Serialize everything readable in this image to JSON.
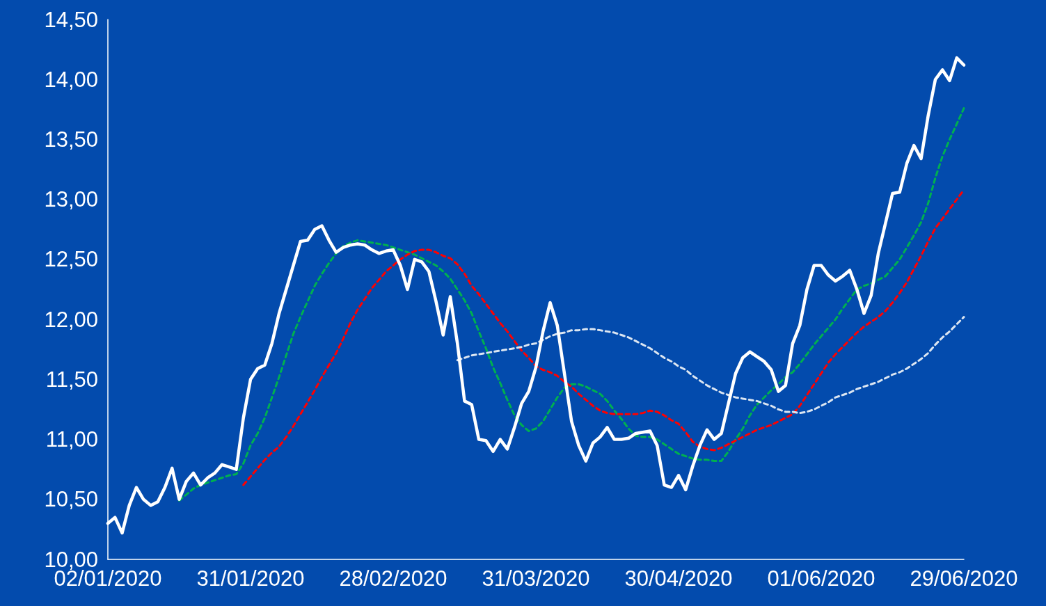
{
  "chart_data": {
    "type": "line",
    "categories": [
      "02/01/2020",
      null,
      null,
      null,
      null,
      null,
      null,
      null,
      null,
      null,
      null,
      null,
      null,
      null,
      null,
      null,
      null,
      null,
      null,
      null,
      "31/01/2020",
      null,
      null,
      null,
      null,
      null,
      null,
      null,
      null,
      null,
      null,
      null,
      null,
      null,
      null,
      null,
      null,
      null,
      null,
      null,
      "28/02/2020",
      null,
      null,
      null,
      null,
      null,
      null,
      null,
      null,
      null,
      null,
      null,
      null,
      null,
      null,
      null,
      null,
      null,
      null,
      null,
      "31/03/2020",
      null,
      null,
      null,
      null,
      null,
      null,
      null,
      null,
      null,
      null,
      null,
      null,
      null,
      null,
      null,
      null,
      null,
      null,
      null,
      "30/04/2020",
      null,
      null,
      null,
      null,
      null,
      null,
      null,
      null,
      null,
      null,
      null,
      null,
      null,
      null,
      null,
      null,
      null,
      null,
      null,
      "01/06/2020",
      null,
      null,
      null,
      null,
      null,
      null,
      null,
      null,
      null,
      null,
      null,
      null,
      null,
      null,
      null,
      null,
      null,
      null,
      null,
      "29/06/2020"
    ],
    "series": [
      {
        "color": "#ffffff",
        "line_style": "solid",
        "values": [
          10.3,
          10.35,
          10.22,
          10.45,
          10.6,
          10.5,
          10.45,
          10.48,
          10.6,
          10.76,
          10.5,
          10.65,
          10.72,
          10.62,
          10.68,
          10.72,
          10.79,
          10.77,
          10.75,
          11.18,
          11.5,
          11.59,
          11.62,
          11.8,
          12.05,
          12.25,
          12.45,
          12.65,
          12.66,
          12.75,
          12.78,
          12.66,
          12.56,
          12.6,
          12.62,
          12.63,
          12.62,
          12.58,
          12.55,
          12.57,
          12.58,
          12.45,
          12.25,
          12.5,
          12.48,
          12.4,
          12.15,
          11.87,
          12.19,
          11.8,
          11.32,
          11.29,
          11.0,
          10.99,
          10.9,
          11.0,
          10.92,
          11.1,
          11.3,
          11.4,
          11.6,
          11.9,
          12.14,
          11.95,
          11.55,
          11.15,
          10.95,
          10.82,
          10.97,
          11.02,
          11.1,
          11.0,
          11.0,
          11.01,
          11.05,
          11.06,
          11.07,
          10.95,
          10.62,
          10.6,
          10.7,
          10.58,
          10.78,
          10.95,
          11.08,
          11.0,
          11.05,
          11.3,
          11.55,
          11.68,
          11.73,
          11.69,
          11.65,
          11.58,
          11.4,
          11.45,
          11.8,
          11.95,
          12.25,
          12.45,
          12.45,
          12.37,
          12.32,
          12.36,
          12.41,
          12.25,
          12.05,
          12.2,
          12.55,
          12.8,
          13.05,
          13.06,
          13.3,
          13.45,
          13.34,
          13.7,
          14.0,
          14.08,
          13.99,
          14.18,
          14.12
        ]
      },
      {
        "color": "#00b050",
        "line_style": "dashed",
        "values": [
          null,
          null,
          null,
          null,
          null,
          null,
          null,
          null,
          null,
          null,
          10.49,
          10.54,
          10.59,
          10.62,
          10.64,
          10.66,
          10.68,
          10.7,
          10.71,
          10.8,
          10.95,
          11.05,
          11.18,
          11.35,
          11.52,
          11.7,
          11.88,
          12.02,
          12.15,
          12.28,
          12.38,
          12.47,
          12.55,
          12.61,
          12.64,
          12.66,
          12.65,
          12.64,
          12.63,
          12.62,
          12.6,
          12.58,
          12.56,
          12.54,
          12.51,
          12.48,
          12.45,
          12.4,
          12.34,
          12.25,
          12.16,
          12.05,
          11.9,
          11.76,
          11.6,
          11.47,
          11.33,
          11.2,
          11.12,
          11.07,
          11.09,
          11.15,
          11.25,
          11.35,
          11.43,
          11.46,
          11.46,
          11.44,
          11.41,
          11.38,
          11.32,
          11.24,
          11.17,
          11.09,
          11.03,
          11.02,
          11.02,
          11.0,
          10.96,
          10.92,
          10.88,
          10.86,
          10.84,
          10.83,
          10.83,
          10.82,
          10.82,
          10.9,
          11.0,
          11.09,
          11.2,
          11.29,
          11.35,
          11.41,
          11.46,
          11.52,
          11.56,
          11.63,
          11.71,
          11.79,
          11.86,
          11.93,
          12.0,
          12.09,
          12.17,
          12.25,
          12.28,
          12.3,
          12.33,
          12.36,
          12.43,
          12.5,
          12.6,
          12.7,
          12.81,
          12.97,
          13.18,
          13.36,
          13.5,
          13.63,
          13.76
        ]
      },
      {
        "color": "#ff0000",
        "line_style": "dashed",
        "values": [
          null,
          null,
          null,
          null,
          null,
          null,
          null,
          null,
          null,
          null,
          null,
          null,
          null,
          null,
          null,
          null,
          null,
          null,
          null,
          10.62,
          10.69,
          10.76,
          10.83,
          10.89,
          10.94,
          11.02,
          11.11,
          11.21,
          11.31,
          11.41,
          11.52,
          11.62,
          11.72,
          11.84,
          11.97,
          12.08,
          12.17,
          12.26,
          12.33,
          12.4,
          12.45,
          12.5,
          12.54,
          12.57,
          12.58,
          12.58,
          12.56,
          12.53,
          12.51,
          12.46,
          12.38,
          12.28,
          12.21,
          12.13,
          12.05,
          11.97,
          11.9,
          11.82,
          11.74,
          11.68,
          11.61,
          11.58,
          11.56,
          11.53,
          11.48,
          11.44,
          11.38,
          11.33,
          11.28,
          11.24,
          11.22,
          11.21,
          11.21,
          11.21,
          11.21,
          11.22,
          11.24,
          11.23,
          11.2,
          11.16,
          11.13,
          11.06,
          10.98,
          10.94,
          10.92,
          10.91,
          10.93,
          10.96,
          10.99,
          11.02,
          11.05,
          11.08,
          11.1,
          11.12,
          11.15,
          11.18,
          11.21,
          11.28,
          11.37,
          11.46,
          11.55,
          11.64,
          11.71,
          11.77,
          11.83,
          11.89,
          11.94,
          11.98,
          12.02,
          12.07,
          12.14,
          12.22,
          12.31,
          12.42,
          12.53,
          12.65,
          12.76,
          12.84,
          12.92,
          13.0,
          13.08
        ]
      },
      {
        "color": "#dce6f2",
        "line_style": "dashed",
        "values": [
          null,
          null,
          null,
          null,
          null,
          null,
          null,
          null,
          null,
          null,
          null,
          null,
          null,
          null,
          null,
          null,
          null,
          null,
          null,
          null,
          null,
          null,
          null,
          null,
          null,
          null,
          null,
          null,
          null,
          null,
          null,
          null,
          null,
          null,
          null,
          null,
          null,
          null,
          null,
          null,
          null,
          null,
          null,
          null,
          null,
          null,
          null,
          null,
          null,
          11.66,
          11.68,
          11.7,
          11.71,
          11.72,
          11.73,
          11.74,
          11.75,
          11.76,
          11.77,
          11.79,
          11.8,
          11.83,
          11.86,
          11.88,
          11.89,
          11.91,
          11.91,
          11.92,
          11.92,
          11.91,
          11.9,
          11.89,
          11.87,
          11.85,
          11.82,
          11.79,
          11.76,
          11.72,
          11.68,
          11.65,
          11.61,
          11.58,
          11.53,
          11.49,
          11.45,
          11.42,
          11.39,
          11.37,
          11.35,
          11.34,
          11.33,
          11.32,
          11.3,
          11.28,
          11.25,
          11.23,
          11.23,
          11.22,
          11.23,
          11.25,
          11.28,
          11.31,
          11.35,
          11.37,
          11.39,
          11.42,
          11.44,
          11.46,
          11.48,
          11.51,
          11.54,
          11.56,
          11.59,
          11.63,
          11.67,
          11.72,
          11.79,
          11.85,
          11.9,
          11.96,
          12.02
        ]
      }
    ],
    "ylim": [
      10,
      14.5
    ],
    "yticks": [
      {
        "value": 10,
        "label": "10,00"
      },
      {
        "value": 10.5,
        "label": "10,50"
      },
      {
        "value": 11,
        "label": "11,00"
      },
      {
        "value": 11.5,
        "label": "11,50"
      },
      {
        "value": 12,
        "label": "12,00"
      },
      {
        "value": 12.5,
        "label": "12,50"
      },
      {
        "value": 13,
        "label": "13,00"
      },
      {
        "value": 13.5,
        "label": "13,50"
      },
      {
        "value": 14,
        "label": "14,00"
      },
      {
        "value": 14.5,
        "label": "14,50"
      }
    ],
    "grid": false,
    "marker": "none"
  }
}
